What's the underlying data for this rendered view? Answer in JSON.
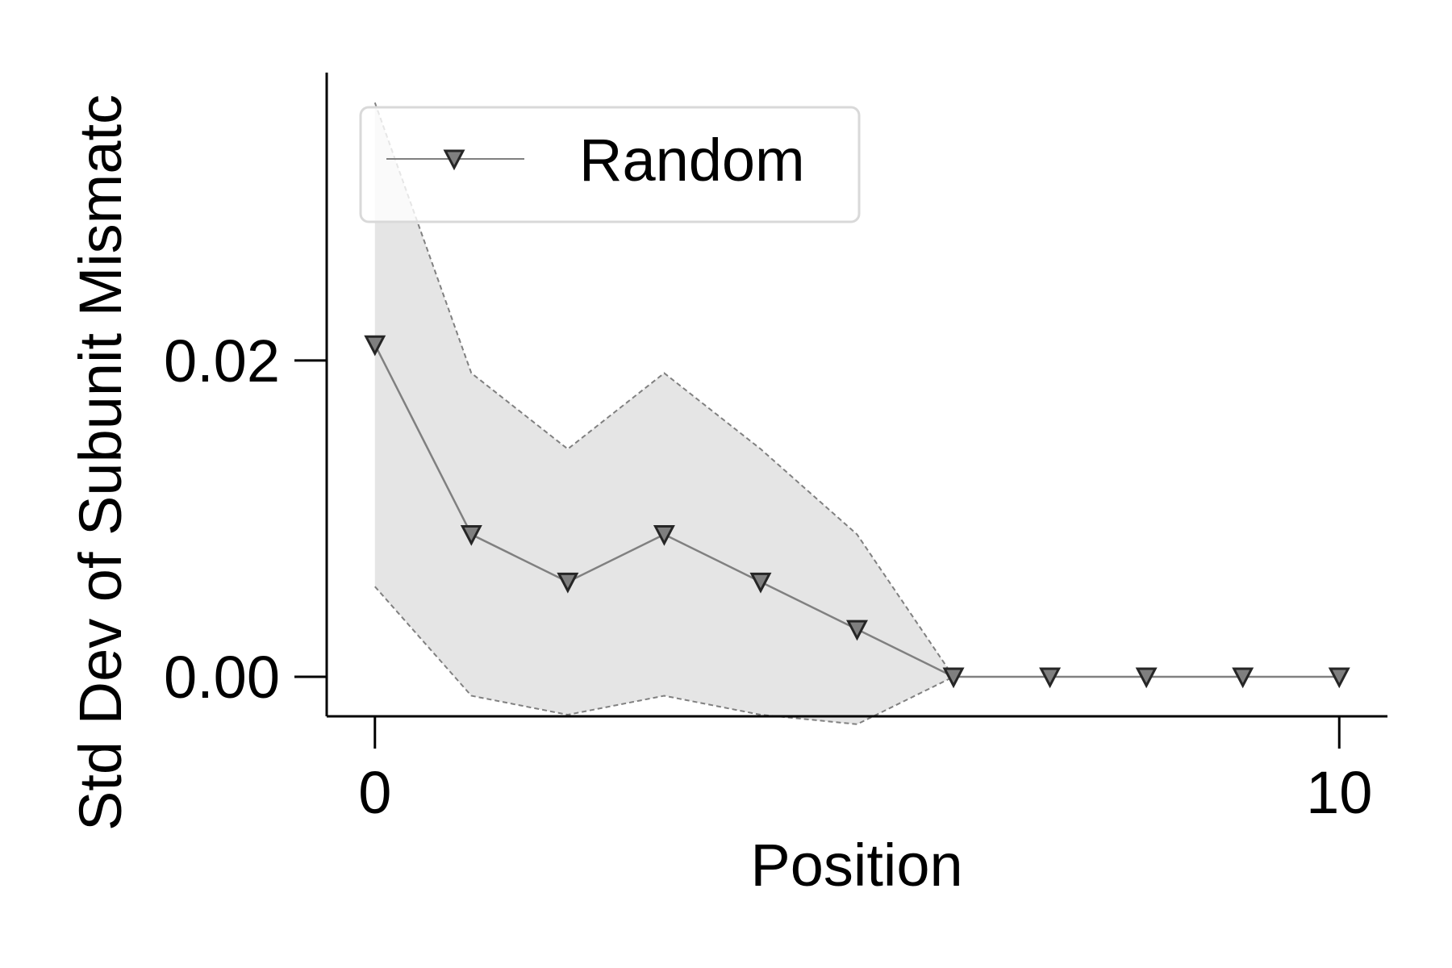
{
  "chart_data": {
    "type": "line",
    "title": "",
    "xlabel": "Position",
    "ylabel": "Std Dev of Subunit Mismatc",
    "xlim": [
      -0.5,
      10.5
    ],
    "ylim": [
      -0.0025,
      0.0382
    ],
    "x_ticks": [
      0,
      10
    ],
    "x_tick_labels": [
      "0",
      "10"
    ],
    "y_ticks": [
      0.0,
      0.02
    ],
    "y_tick_labels": [
      "0.00",
      "0.02"
    ],
    "grid": false,
    "legend_position": "top-left",
    "series": [
      {
        "name": "Random",
        "color": "#808080",
        "marker": "triangle-down",
        "x": [
          0,
          1,
          2,
          3,
          4,
          5,
          6,
          7,
          8,
          9,
          10
        ],
        "y": [
          0.021,
          0.009,
          0.006,
          0.009,
          0.006,
          0.003,
          0.0,
          0.0,
          0.0,
          0.0,
          0.0
        ],
        "band_upper": [
          0.0363,
          0.0192,
          0.0144,
          0.0192,
          0.0144,
          0.009,
          0.0,
          0.0,
          0.0,
          0.0,
          0.0
        ],
        "band_lower": [
          0.0057,
          -0.0012,
          -0.0024,
          -0.0012,
          -0.0024,
          -0.003,
          0.0,
          0.0,
          0.0,
          0.0,
          0.0
        ]
      }
    ]
  },
  "colors": {
    "band_fill": "#e5e5e5",
    "band_edge": "#808080",
    "marker_fill": "#7f7f7f",
    "marker_edge": "#262626",
    "axis": "#000000",
    "legend_border": "#d9d9d9"
  }
}
